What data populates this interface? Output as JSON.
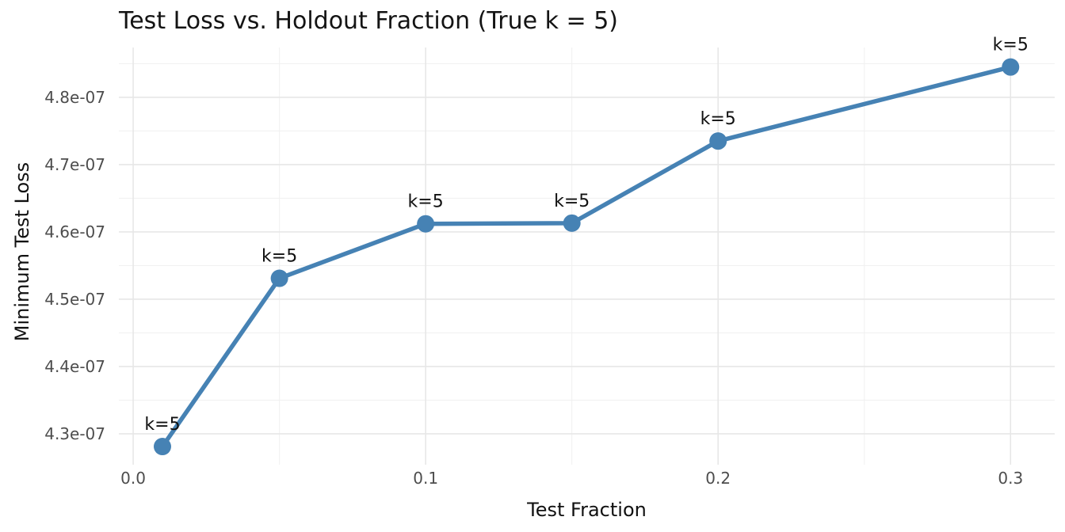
{
  "chart_data": {
    "type": "line",
    "title": "Test Loss vs. Holdout Fraction (True k = 5)",
    "xlabel": "Test Fraction",
    "ylabel": "Minimum Test Loss",
    "x": [
      0.01,
      0.05,
      0.1,
      0.15,
      0.2,
      0.3
    ],
    "y": [
      4.281e-07,
      4.531e-07,
      4.612e-07,
      4.613e-07,
      4.735e-07,
      4.845e-07
    ],
    "point_labels": [
      "k=5",
      "k=5",
      "k=5",
      "k=5",
      "k=5",
      "k=5"
    ],
    "x_ticks": [
      0.0,
      0.1,
      0.2,
      0.3
    ],
    "x_tick_labels": [
      "0.0",
      "0.1",
      "0.2",
      "0.3"
    ],
    "x_minor_ticks": [
      0.05,
      0.15,
      0.25
    ],
    "y_ticks": [
      4.3e-07,
      4.4e-07,
      4.5e-07,
      4.6e-07,
      4.7e-07,
      4.8e-07
    ],
    "y_tick_labels": [
      "4.3e-07",
      "4.4e-07",
      "4.5e-07",
      "4.6e-07",
      "4.7e-07",
      "4.8e-07"
    ],
    "y_minor_ticks": [
      4.35e-07,
      4.45e-07,
      4.55e-07,
      4.65e-07,
      4.75e-07,
      4.85e-07
    ],
    "xlim": [
      -0.0049,
      0.3151
    ],
    "ylim": [
      4.254e-07,
      4.874e-07
    ],
    "grid": true,
    "legend": false,
    "colors": {
      "line": "#4682B4",
      "marker": "#4682B4",
      "grid_major": "#e7e7e7",
      "grid_minor": "#f1f1f1",
      "tick_label": "#4d4d4d",
      "title": "#141414",
      "annotation": "#111111",
      "background": "#ffffff"
    }
  }
}
